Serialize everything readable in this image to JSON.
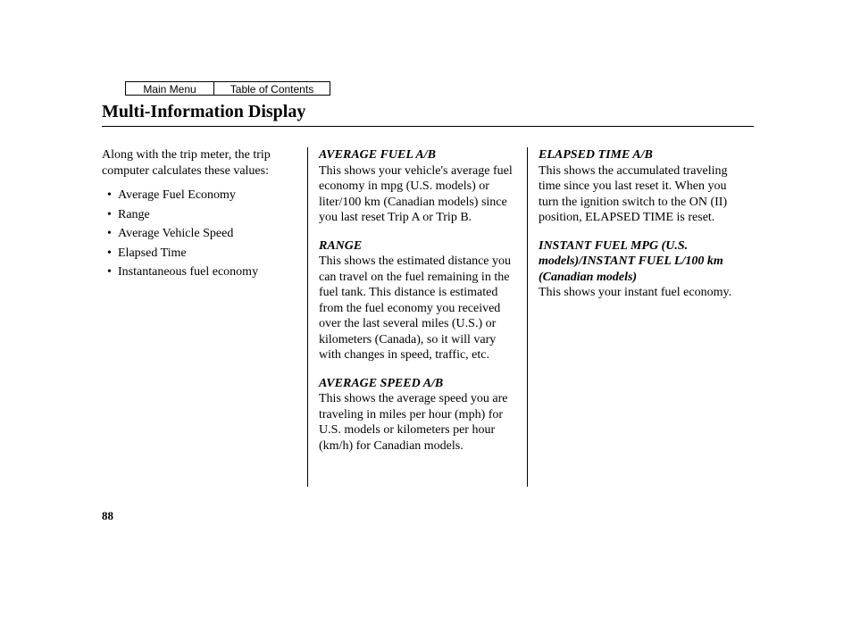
{
  "colors": {
    "text": "#000000",
    "background": "#ffffff",
    "rule": "#000000"
  },
  "typography": {
    "body_font": "Times New Roman",
    "body_size_pt": 10.5,
    "title_size_pt": 15,
    "nav_font": "Arial",
    "nav_size_pt": 9
  },
  "nav": {
    "main_menu": "Main Menu",
    "toc": "Table of Contents"
  },
  "title": "Multi-Information Display",
  "col1": {
    "intro": "Along with the trip meter, the trip computer calculates these values:",
    "items": [
      "Average Fuel Economy",
      "Range",
      "Average Vehicle Speed",
      "Elapsed Time",
      "Instantaneous fuel economy"
    ]
  },
  "col2": {
    "sections": [
      {
        "head": "AVERAGE FUEL A/B",
        "body": "This shows your vehicle's average fuel economy in mpg (U.S. models) or liter/100 km (Canadian models) since you last reset Trip A or Trip B."
      },
      {
        "head": "RANGE",
        "body": "This shows the estimated distance you can travel on the fuel remaining in the fuel tank. This distance is estimated from the fuel economy you received over the last several miles (U.S.) or kilometers (Canada), so it will vary with changes in speed, traffic, etc."
      },
      {
        "head": "AVERAGE SPEED A/B",
        "body": "This shows the average speed you are traveling in miles per hour (mph) for U.S. models or kilometers per hour (km/h) for Canadian models."
      }
    ]
  },
  "col3": {
    "sections": [
      {
        "head": "ELAPSED TIME A/B",
        "body": "This shows the accumulated traveling time since you last reset it. When you turn the ignition switch to the ON (II) position, ELAPSED TIME is reset."
      },
      {
        "head": "INSTANT FUEL MPG (U.S. models)/INSTANT FUEL L/100 km (Canadian models)",
        "body": "This shows your instant fuel economy."
      }
    ]
  },
  "page_number": "88"
}
